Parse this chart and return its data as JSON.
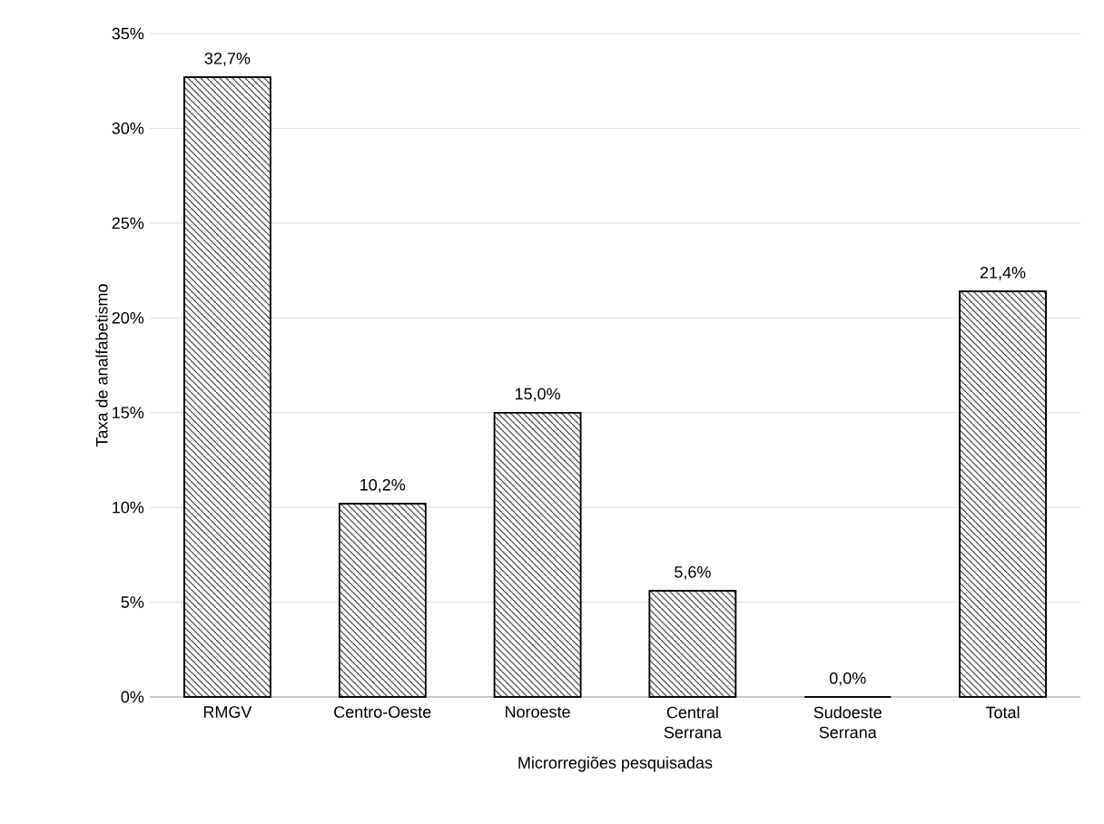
{
  "chart_data": {
    "type": "bar",
    "xlabel": "Microrregiões pesquisadas",
    "ylabel": "Taxa de analfabetismo",
    "categories": [
      "RMGV",
      "Centro-Oeste",
      "Noroeste",
      "Central Serrana",
      "Sudoeste Serrana",
      "Total"
    ],
    "values": [
      32.7,
      10.2,
      15.0,
      5.6,
      0.0,
      21.4
    ],
    "value_labels": [
      "32,7%",
      "10,2%",
      "15,0%",
      "5,6%",
      "0,0%",
      "21,4%"
    ],
    "color": "#000000",
    "ylim": [
      0,
      35
    ],
    "yticks": [
      {
        "value": 0,
        "label": "0%"
      },
      {
        "value": 5,
        "label": "5%"
      },
      {
        "value": 10,
        "label": "10%"
      },
      {
        "value": 15,
        "label": "15%"
      },
      {
        "value": 20,
        "label": "20%"
      },
      {
        "value": 25,
        "label": "25%"
      },
      {
        "value": 30,
        "label": "30%"
      },
      {
        "value": 35,
        "label": "35%"
      }
    ],
    "grid": "y"
  }
}
